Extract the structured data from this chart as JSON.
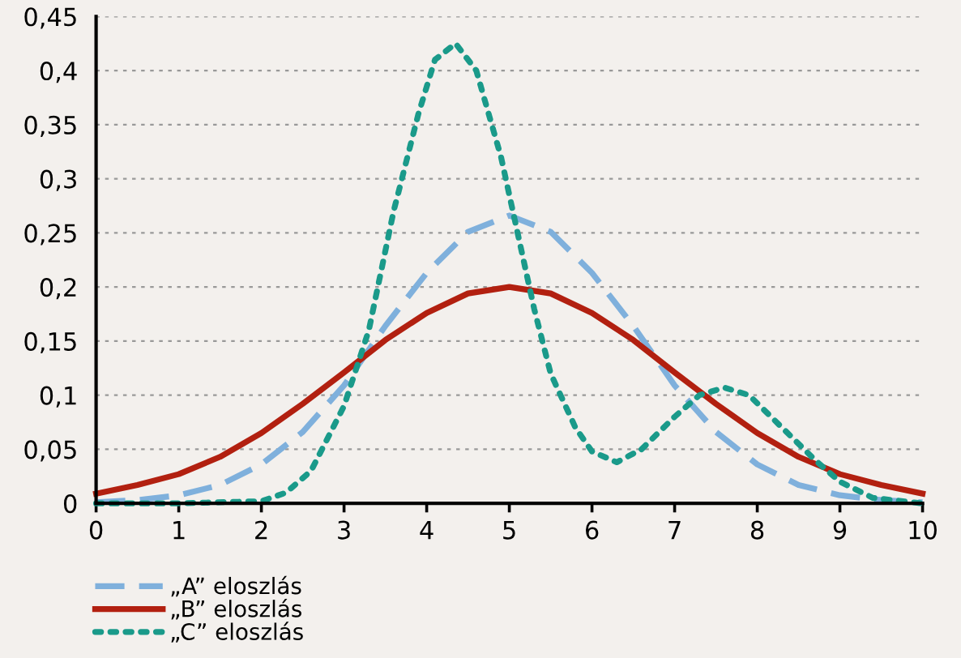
{
  "chart_data": {
    "type": "line",
    "xlim": [
      0,
      10
    ],
    "ylim": [
      0,
      0.45
    ],
    "xticks": [
      0,
      1,
      2,
      3,
      4,
      5,
      6,
      7,
      8,
      9,
      10
    ],
    "yticks": [
      0,
      {
        "value": 0.05,
        "label": "0,05"
      },
      {
        "value": 0.1,
        "label": "0,1"
      },
      {
        "value": 0.15,
        "label": "0,15"
      },
      {
        "value": 0.2,
        "label": "0,2"
      },
      {
        "value": 0.25,
        "label": "0,25"
      },
      {
        "value": 0.3,
        "label": "0,3"
      },
      {
        "value": 0.35,
        "label": "0,35"
      },
      {
        "value": 0.4,
        "label": "0,4"
      },
      {
        "value": 0.45,
        "label": "0,45"
      }
    ],
    "grid": "y",
    "legend": "bottom left",
    "marker": "none",
    "series": [
      {
        "name": "„A” eloszlás",
        "color": "#7fb0dc",
        "line_style": "dashed",
        "x": [
          0,
          0.5,
          1,
          1.5,
          2,
          2.5,
          3,
          3.5,
          4,
          4.5,
          5,
          5.5,
          6,
          6.5,
          7,
          7.5,
          8,
          8.5,
          9,
          9.5,
          10
        ],
        "values": [
          0.001,
          0.003,
          0.0075,
          0.017,
          0.036,
          0.066,
          0.109,
          0.164,
          0.213,
          0.251,
          0.266,
          0.251,
          0.213,
          0.164,
          0.109,
          0.066,
          0.036,
          0.017,
          0.0075,
          0.003,
          0.001
        ]
      },
      {
        "name": "„B” eloszlás",
        "color": "#b22010",
        "line_style": "solid",
        "x": [
          0,
          0.5,
          1,
          1.5,
          2,
          2.5,
          3,
          3.5,
          4,
          4.5,
          5,
          5.5,
          6,
          6.5,
          7,
          7.5,
          8,
          8.5,
          9,
          9.5,
          10
        ],
        "values": [
          0.009,
          0.017,
          0.027,
          0.043,
          0.065,
          0.092,
          0.121,
          0.151,
          0.176,
          0.194,
          0.2,
          0.194,
          0.176,
          0.151,
          0.121,
          0.092,
          0.065,
          0.043,
          0.027,
          0.017,
          0.009
        ]
      },
      {
        "name": "„C” eloszlás",
        "color": "#1a9a8a",
        "line_style": "dotted",
        "x": [
          0,
          1,
          2,
          2.3,
          2.6,
          3,
          3.3,
          3.6,
          3.9,
          4.1,
          4.35,
          4.6,
          4.9,
          5.1,
          5.3,
          5.5,
          5.8,
          6,
          6.3,
          6.6,
          7,
          7.3,
          7.6,
          7.9,
          8.3,
          8.7,
          9,
          9.4,
          10
        ],
        "values": [
          0,
          0,
          0.002,
          0.01,
          0.03,
          0.09,
          0.16,
          0.27,
          0.36,
          0.41,
          0.425,
          0.4,
          0.32,
          0.25,
          0.18,
          0.12,
          0.07,
          0.048,
          0.038,
          0.05,
          0.08,
          0.1,
          0.107,
          0.1,
          0.07,
          0.04,
          0.02,
          0.005,
          0
        ]
      }
    ]
  }
}
